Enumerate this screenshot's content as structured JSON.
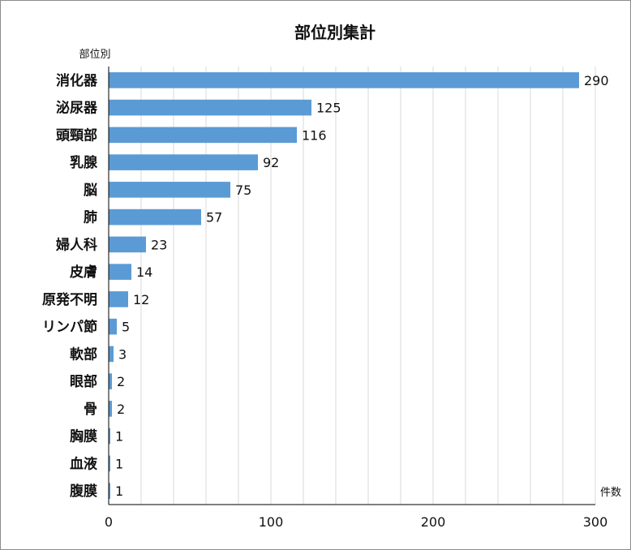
{
  "chart_data": {
    "type": "bar",
    "orientation": "horizontal",
    "title": "部位別集計",
    "ylabel": "部位別",
    "xlabel": "件数",
    "categories": [
      "消化器",
      "泌尿器",
      "頭頸部",
      "乳腺",
      "脳",
      "肺",
      "婦人科",
      "皮膚",
      "原発不明",
      "リンパ節",
      "軟部",
      "眼部",
      "骨",
      "胸膜",
      "血液",
      "腹膜"
    ],
    "values": [
      290,
      125,
      116,
      92,
      75,
      57,
      23,
      14,
      12,
      5,
      3,
      2,
      2,
      1,
      1,
      1
    ],
    "xlim": [
      0,
      300
    ],
    "major_ticks": [
      0,
      100,
      200,
      300
    ],
    "minor_grid_step": 20,
    "grid": true,
    "bar_color": "#5b9bd5",
    "grid_color": "#d9d9d9",
    "axis_color": "#000000"
  }
}
